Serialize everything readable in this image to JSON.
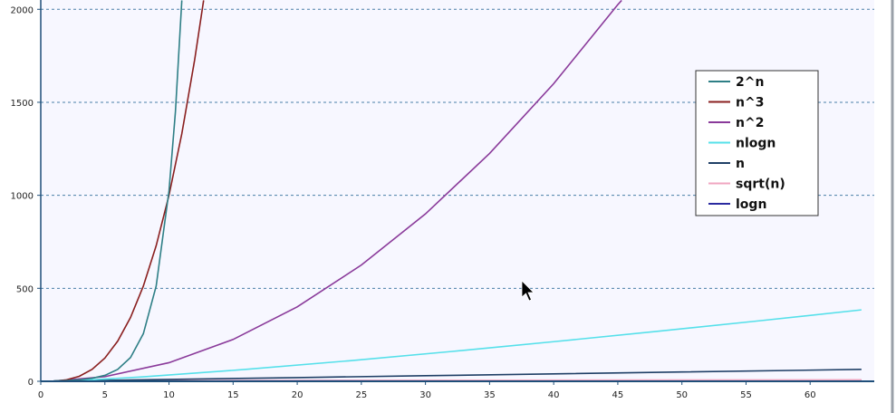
{
  "chart_data": {
    "type": "line",
    "title": "",
    "xlabel": "",
    "ylabel": "",
    "xlim": [
      0,
      65
    ],
    "ylim": [
      0,
      2050
    ],
    "x_ticks": [
      "0",
      "5",
      "10",
      "15",
      "20",
      "25",
      "30",
      "35",
      "40",
      "45",
      "50",
      "55",
      "60"
    ],
    "y_ticks": [
      "0",
      "500",
      "1000",
      "1500",
      "2000"
    ],
    "y_grid": true,
    "legend_position": "top-right",
    "colors": {
      "plot_background": "#f7f7ff",
      "grid": "#4a7fa8",
      "axis": "#1f4f7a",
      "frame": "#9aa0a8"
    },
    "series": [
      {
        "name": "2^n",
        "color": "#2e7f86",
        "points": [
          [
            1,
            2
          ],
          [
            2,
            4
          ],
          [
            3,
            8
          ],
          [
            4,
            16
          ],
          [
            5,
            32
          ],
          [
            6,
            64
          ],
          [
            7,
            128
          ],
          [
            8,
            256
          ],
          [
            9,
            512
          ],
          [
            10,
            1024
          ],
          [
            10.5,
            1448
          ],
          [
            11,
            2048
          ]
        ]
      },
      {
        "name": "n^3",
        "color": "#8a1f1f",
        "points": [
          [
            1,
            1
          ],
          [
            2,
            8
          ],
          [
            3,
            27
          ],
          [
            4,
            64
          ],
          [
            5,
            125
          ],
          [
            6,
            216
          ],
          [
            7,
            343
          ],
          [
            8,
            512
          ],
          [
            9,
            729
          ],
          [
            10,
            1000
          ],
          [
            11,
            1331
          ],
          [
            12,
            1728
          ],
          [
            12.7,
            2048
          ]
        ]
      },
      {
        "name": "n^2",
        "color": "#8a3a9a",
        "points": [
          [
            1,
            1
          ],
          [
            5,
            25
          ],
          [
            10,
            100
          ],
          [
            15,
            225
          ],
          [
            20,
            400
          ],
          [
            25,
            625
          ],
          [
            30,
            900
          ],
          [
            35,
            1225
          ],
          [
            40,
            1600
          ],
          [
            45,
            2025
          ],
          [
            45.3,
            2048
          ]
        ]
      },
      {
        "name": "nlogn",
        "color": "#55e0ea",
        "points": [
          [
            1,
            0
          ],
          [
            2,
            2
          ],
          [
            4,
            8
          ],
          [
            8,
            24
          ],
          [
            16,
            64
          ],
          [
            24,
            110
          ],
          [
            32,
            160
          ],
          [
            40,
            213
          ],
          [
            48,
            268
          ],
          [
            56,
            325
          ],
          [
            64,
            384
          ]
        ]
      },
      {
        "name": "n",
        "color": "#1f3f66",
        "points": [
          [
            1,
            1
          ],
          [
            10,
            10
          ],
          [
            20,
            20
          ],
          [
            30,
            30
          ],
          [
            40,
            40
          ],
          [
            50,
            50
          ],
          [
            64,
            64
          ]
        ]
      },
      {
        "name": "sqrt(n)",
        "color": "#f0a6c0",
        "points": [
          [
            1,
            1
          ],
          [
            4,
            2
          ],
          [
            9,
            3
          ],
          [
            16,
            4
          ],
          [
            25,
            5
          ],
          [
            36,
            6
          ],
          [
            49,
            7
          ],
          [
            64,
            8
          ]
        ]
      },
      {
        "name": "logn",
        "color": "#2a2aa0",
        "points": [
          [
            1,
            0
          ],
          [
            2,
            1
          ],
          [
            4,
            2
          ],
          [
            8,
            3
          ],
          [
            16,
            4
          ],
          [
            32,
            5
          ],
          [
            64,
            6
          ]
        ]
      }
    ]
  }
}
